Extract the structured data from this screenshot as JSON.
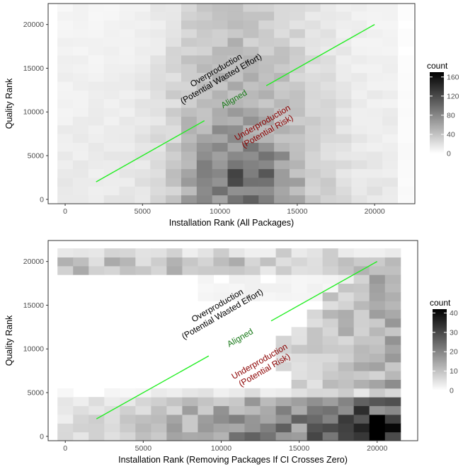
{
  "chart_data": [
    {
      "type": "heatmap",
      "xlabel": "Installation Rank (All Packages)",
      "ylabel": "Quality Rank",
      "xlim": [
        -1100,
        22600
      ],
      "ylim": [
        -500,
        22400
      ],
      "xticks": [
        0,
        5000,
        10000,
        15000,
        20000
      ],
      "yticks": [
        0,
        5000,
        10000,
        15000,
        20000
      ],
      "grid": false,
      "bin_width": 1000,
      "bin_height": 1000,
      "color_scale": {
        "low": "#ffffff",
        "high": "#000000",
        "min": 0,
        "max": 170
      },
      "legend": {
        "title": "count",
        "position": "right",
        "breaks": [
          0,
          40,
          80,
          120,
          160
        ]
      },
      "pattern": "all",
      "reference_line": {
        "color": "#22ee22",
        "segments": [
          [
            [
              2000,
              2000
            ],
            [
              9000,
              9000
            ]
          ],
          [
            [
              13000,
              13000
            ],
            [
              20000,
              20000
            ]
          ]
        ]
      },
      "annotations": [
        {
          "lines": [
            "Overproduction",
            "(Potential Wasted Effort)"
          ],
          "x": 10000,
          "y": 14000,
          "angle": 30,
          "color": "#000000"
        },
        {
          "lines": [
            "Aligned"
          ],
          "x": 11000,
          "y": 11200,
          "angle": 30,
          "color": "#1a7a1a"
        },
        {
          "lines": [
            "Underproduction",
            "(Potential Risk)"
          ],
          "x": 13000,
          "y": 8000,
          "angle": 30,
          "color": "#8b0000"
        }
      ]
    },
    {
      "type": "heatmap",
      "xlabel": "Installation Rank (Removing Packages If CI Crosses Zero)",
      "ylabel": "Quality Rank",
      "xlim": [
        -1100,
        22600
      ],
      "ylim": [
        -500,
        22400
      ],
      "xticks": [
        0,
        5000,
        10000,
        15000,
        20000
      ],
      "yticks": [
        0,
        5000,
        10000,
        15000,
        20000
      ],
      "grid": false,
      "bin_width": 1000,
      "bin_height": 1000,
      "color_scale": {
        "low": "#ffffff",
        "high": "#000000",
        "min": 0,
        "max": 42
      },
      "legend": {
        "title": "count",
        "position": "right",
        "breaks": [
          0,
          10,
          20,
          30,
          40
        ]
      },
      "pattern": "ci",
      "reference_line": {
        "color": "#22ee22",
        "segments": [
          [
            [
              2000,
              2000
            ],
            [
              9200,
              9200
            ]
          ],
          [
            [
              13200,
              13200
            ],
            [
              20000,
              20000
            ]
          ]
        ]
      },
      "annotations": [
        {
          "lines": [
            "Overproduction",
            "(Potential Wasted Effort)"
          ],
          "x": 10000,
          "y": 14200,
          "angle": 30,
          "color": "#000000"
        },
        {
          "lines": [
            "Aligned"
          ],
          "x": 11300,
          "y": 11000,
          "angle": 30,
          "color": "#1a7a1a"
        },
        {
          "lines": [
            "Underproduction",
            "(Potential Risk)"
          ],
          "x": 12700,
          "y": 7800,
          "angle": 30,
          "color": "#8b0000"
        }
      ]
    }
  ]
}
